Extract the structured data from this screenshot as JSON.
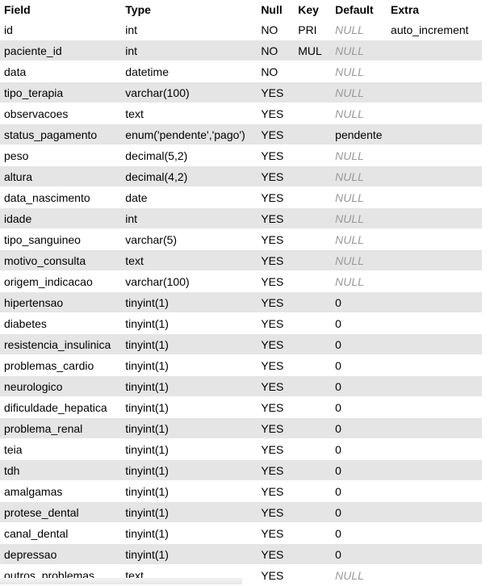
{
  "headers": [
    "Field",
    "Type",
    "Null",
    "Key",
    "Default",
    "Extra"
  ],
  "rows": [
    {
      "field": "id",
      "type": "int",
      "null": "NO",
      "key": "PRI",
      "default": "NULL",
      "default_is_null": true,
      "extra": "auto_increment"
    },
    {
      "field": "paciente_id",
      "type": "int",
      "null": "NO",
      "key": "MUL",
      "default": "NULL",
      "default_is_null": true,
      "extra": ""
    },
    {
      "field": "data",
      "type": "datetime",
      "null": "NO",
      "key": "",
      "default": "NULL",
      "default_is_null": true,
      "extra": ""
    },
    {
      "field": "tipo_terapia",
      "type": "varchar(100)",
      "null": "YES",
      "key": "",
      "default": "NULL",
      "default_is_null": true,
      "extra": ""
    },
    {
      "field": "observacoes",
      "type": "text",
      "null": "YES",
      "key": "",
      "default": "NULL",
      "default_is_null": true,
      "extra": ""
    },
    {
      "field": "status_pagamento",
      "type": "enum('pendente','pago')",
      "null": "YES",
      "key": "",
      "default": "pendente",
      "default_is_null": false,
      "extra": ""
    },
    {
      "field": "peso",
      "type": "decimal(5,2)",
      "null": "YES",
      "key": "",
      "default": "NULL",
      "default_is_null": true,
      "extra": ""
    },
    {
      "field": "altura",
      "type": "decimal(4,2)",
      "null": "YES",
      "key": "",
      "default": "NULL",
      "default_is_null": true,
      "extra": ""
    },
    {
      "field": "data_nascimento",
      "type": "date",
      "null": "YES",
      "key": "",
      "default": "NULL",
      "default_is_null": true,
      "extra": ""
    },
    {
      "field": "idade",
      "type": "int",
      "null": "YES",
      "key": "",
      "default": "NULL",
      "default_is_null": true,
      "extra": ""
    },
    {
      "field": "tipo_sanguineo",
      "type": "varchar(5)",
      "null": "YES",
      "key": "",
      "default": "NULL",
      "default_is_null": true,
      "extra": ""
    },
    {
      "field": "motivo_consulta",
      "type": "text",
      "null": "YES",
      "key": "",
      "default": "NULL",
      "default_is_null": true,
      "extra": ""
    },
    {
      "field": "origem_indicacao",
      "type": "varchar(100)",
      "null": "YES",
      "key": "",
      "default": "NULL",
      "default_is_null": true,
      "extra": ""
    },
    {
      "field": "hipertensao",
      "type": "tinyint(1)",
      "null": "YES",
      "key": "",
      "default": "0",
      "default_is_null": false,
      "extra": ""
    },
    {
      "field": "diabetes",
      "type": "tinyint(1)",
      "null": "YES",
      "key": "",
      "default": "0",
      "default_is_null": false,
      "extra": ""
    },
    {
      "field": "resistencia_insulinica",
      "type": "tinyint(1)",
      "null": "YES",
      "key": "",
      "default": "0",
      "default_is_null": false,
      "extra": ""
    },
    {
      "field": "problemas_cardio",
      "type": "tinyint(1)",
      "null": "YES",
      "key": "",
      "default": "0",
      "default_is_null": false,
      "extra": ""
    },
    {
      "field": "neurologico",
      "type": "tinyint(1)",
      "null": "YES",
      "key": "",
      "default": "0",
      "default_is_null": false,
      "extra": ""
    },
    {
      "field": "dificuldade_hepatica",
      "type": "tinyint(1)",
      "null": "YES",
      "key": "",
      "default": "0",
      "default_is_null": false,
      "extra": ""
    },
    {
      "field": "problema_renal",
      "type": "tinyint(1)",
      "null": "YES",
      "key": "",
      "default": "0",
      "default_is_null": false,
      "extra": ""
    },
    {
      "field": "teia",
      "type": "tinyint(1)",
      "null": "YES",
      "key": "",
      "default": "0",
      "default_is_null": false,
      "extra": ""
    },
    {
      "field": "tdh",
      "type": "tinyint(1)",
      "null": "YES",
      "key": "",
      "default": "0",
      "default_is_null": false,
      "extra": ""
    },
    {
      "field": "amalgamas",
      "type": "tinyint(1)",
      "null": "YES",
      "key": "",
      "default": "0",
      "default_is_null": false,
      "extra": ""
    },
    {
      "field": "protese_dental",
      "type": "tinyint(1)",
      "null": "YES",
      "key": "",
      "default": "0",
      "default_is_null": false,
      "extra": ""
    },
    {
      "field": "canal_dental",
      "type": "tinyint(1)",
      "null": "YES",
      "key": "",
      "default": "0",
      "default_is_null": false,
      "extra": ""
    },
    {
      "field": "depressao",
      "type": "tinyint(1)",
      "null": "YES",
      "key": "",
      "default": "0",
      "default_is_null": false,
      "extra": ""
    },
    {
      "field": "outros_problemas",
      "type": "text",
      "null": "YES",
      "key": "",
      "default": "NULL",
      "default_is_null": true,
      "extra": ""
    }
  ],
  "colors": {
    "row_stripe": "#e5e5e5",
    "null_text": "#999999"
  }
}
